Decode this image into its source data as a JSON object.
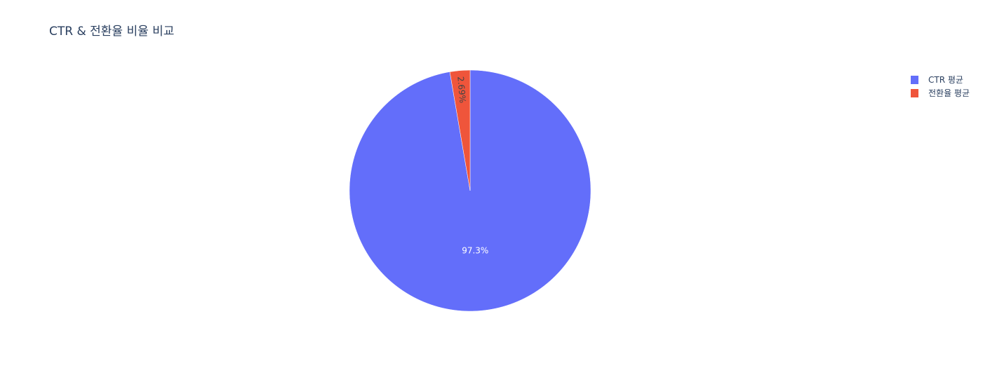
{
  "chart_data": {
    "type": "pie",
    "title": "CTR & 전환율 비율 비교",
    "labels": [
      "CTR 평균",
      "전환율 평균"
    ],
    "values": [
      97.31,
      2.69
    ],
    "text_labels": [
      "97.3%",
      "2.69%"
    ],
    "colors": [
      "#636efa",
      "#ef553b"
    ],
    "label_colors": [
      "#ffffff",
      "#444444"
    ],
    "legend_position": "top-right"
  }
}
